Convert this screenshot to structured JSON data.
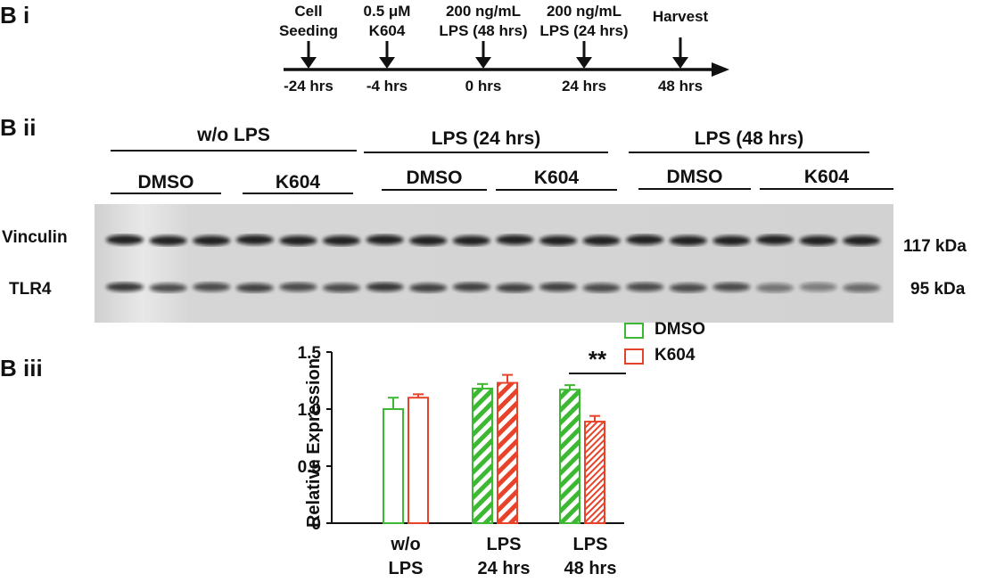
{
  "panels": {
    "i": "B i",
    "ii": "B ii",
    "iii": "B iii"
  },
  "timeline": {
    "events": [
      {
        "label": [
          "Cell",
          "Seeding"
        ],
        "time": "-24 hrs"
      },
      {
        "label": [
          "0.5 μM",
          "K604"
        ],
        "time": "-4 hrs"
      },
      {
        "label": [
          "200 ng/mL",
          "LPS (48 hrs)"
        ],
        "time": "0 hrs"
      },
      {
        "label": [
          "200 ng/mL",
          "LPS (24 hrs)"
        ],
        "time": "24 hrs"
      },
      {
        "label": [
          "Harvest"
        ],
        "time": "48 hrs"
      }
    ]
  },
  "blot": {
    "groups": [
      "w/o LPS",
      "LPS (24 hrs)",
      "LPS (48 hrs)"
    ],
    "treatments": [
      "DMSO",
      "K604",
      "DMSO",
      "K604",
      "DMSO",
      "K604"
    ],
    "bands": [
      {
        "name": "Vinculin",
        "size": "117 kDa"
      },
      {
        "name": "TLR4",
        "size": "95 kDa"
      }
    ]
  },
  "chart_data": {
    "type": "bar",
    "ylabel": "Relative Expression",
    "ylim": [
      0,
      1.5
    ],
    "yticks": [
      "0",
      "0.5",
      "1.0",
      "1.5"
    ],
    "categories": [
      [
        "w/o",
        "LPS"
      ],
      [
        "LPS",
        "24 hrs"
      ],
      [
        "LPS",
        "48 hrs"
      ]
    ],
    "series": [
      {
        "name": "DMSO",
        "color": "#3cb832",
        "values": [
          1.0,
          1.18,
          1.17
        ],
        "errors": [
          0.1,
          0.04,
          0.04
        ]
      },
      {
        "name": "K604",
        "color": "#e8432a",
        "values": [
          1.1,
          1.23,
          0.89
        ],
        "errors": [
          0.03,
          0.07,
          0.05
        ]
      }
    ],
    "fills": [
      "open",
      "hatched",
      "hatched"
    ],
    "annotation": "**"
  }
}
